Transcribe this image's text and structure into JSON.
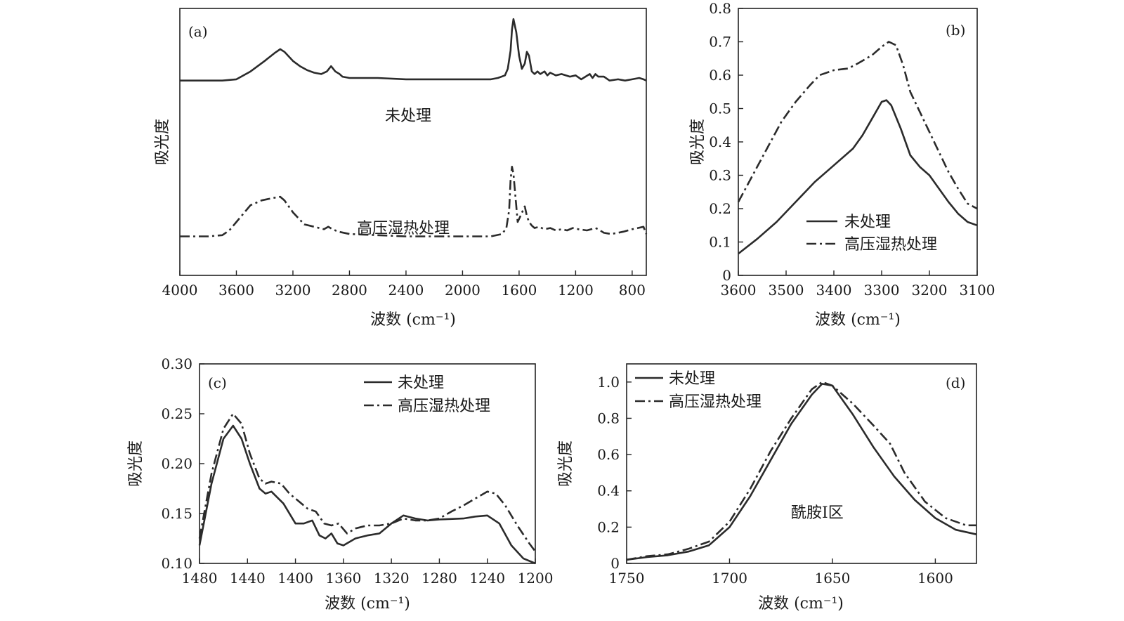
{
  "chart_data": [
    {
      "id": "a",
      "type": "line",
      "panel_label": "(a)",
      "xlabel": "波数 (cm⁻¹)",
      "ylabel": "吸光度",
      "xlim": [
        4000,
        700
      ],
      "ylim": [
        0,
        1
      ],
      "xticks": [
        4000,
        3600,
        3200,
        2800,
        2400,
        2000,
        1600,
        1200,
        800
      ],
      "yticks": [],
      "annotations": [
        "未处理",
        "高压湿热处理"
      ],
      "series": [
        {
          "name": "未处理",
          "style": "solid",
          "x": [
            4000,
            3800,
            3700,
            3600,
            3500,
            3400,
            3330,
            3290,
            3260,
            3200,
            3150,
            3100,
            3050,
            3000,
            2960,
            2930,
            2900,
            2870,
            2850,
            2800,
            2600,
            2400,
            2200,
            2000,
            1900,
            1800,
            1750,
            1700,
            1680,
            1660,
            1650,
            1640,
            1620,
            1600,
            1580,
            1560,
            1545,
            1530,
            1510,
            1490,
            1470,
            1450,
            1420,
            1400,
            1380,
            1340,
            1300,
            1240,
            1200,
            1160,
            1100,
            1080,
            1060,
            1040,
            1000,
            960,
            900,
            850,
            800,
            750,
            720,
            700
          ],
          "y": [
            0.53,
            0.53,
            0.53,
            0.54,
            0.6,
            0.68,
            0.74,
            0.77,
            0.75,
            0.68,
            0.64,
            0.61,
            0.59,
            0.58,
            0.6,
            0.64,
            0.6,
            0.58,
            0.56,
            0.55,
            0.55,
            0.54,
            0.54,
            0.54,
            0.54,
            0.54,
            0.55,
            0.57,
            0.62,
            0.76,
            0.92,
            1.0,
            0.9,
            0.72,
            0.62,
            0.66,
            0.75,
            0.72,
            0.6,
            0.58,
            0.6,
            0.58,
            0.6,
            0.57,
            0.59,
            0.57,
            0.58,
            0.56,
            0.57,
            0.54,
            0.58,
            0.55,
            0.58,
            0.56,
            0.56,
            0.53,
            0.54,
            0.53,
            0.54,
            0.55,
            0.54,
            0.53
          ]
        },
        {
          "name": "高压湿热处理",
          "style": "dashdot",
          "x": [
            4000,
            3800,
            3700,
            3650,
            3600,
            3500,
            3420,
            3340,
            3290,
            3260,
            3200,
            3120,
            3050,
            2980,
            2950,
            2920,
            2880,
            2800,
            2600,
            2400,
            2200,
            2000,
            1900,
            1800,
            1720,
            1690,
            1670,
            1660,
            1650,
            1640,
            1625,
            1610,
            1590,
            1560,
            1545,
            1530,
            1510,
            1490,
            1460,
            1420,
            1380,
            1340,
            1300,
            1260,
            1220,
            1180,
            1120,
            1060,
            1040,
            1000,
            950,
            900,
            860,
            800,
            760,
            720,
            700
          ],
          "y": [
            0.08,
            0.08,
            0.09,
            0.13,
            0.2,
            0.34,
            0.38,
            0.4,
            0.41,
            0.38,
            0.28,
            0.18,
            0.16,
            0.14,
            0.16,
            0.14,
            0.12,
            0.1,
            0.09,
            0.08,
            0.08,
            0.08,
            0.08,
            0.08,
            0.1,
            0.15,
            0.3,
            0.55,
            0.66,
            0.6,
            0.4,
            0.2,
            0.25,
            0.33,
            0.25,
            0.2,
            0.17,
            0.15,
            0.16,
            0.14,
            0.15,
            0.13,
            0.14,
            0.13,
            0.15,
            0.14,
            0.13,
            0.15,
            0.14,
            0.11,
            0.1,
            0.11,
            0.12,
            0.14,
            0.15,
            0.16,
            0.1
          ]
        }
      ]
    },
    {
      "id": "b",
      "type": "line",
      "panel_label": "(b)",
      "xlabel": "波数 (cm⁻¹)",
      "ylabel": "吸光度",
      "xlim": [
        3600,
        3100
      ],
      "ylim": [
        0,
        0.8
      ],
      "xticks": [
        3600,
        3500,
        3400,
        3300,
        3200,
        3100
      ],
      "yticks": [
        0,
        0.1,
        0.2,
        0.3,
        0.4,
        0.5,
        0.6,
        0.7,
        0.8
      ],
      "legend": {
        "position": "lower-right",
        "entries": [
          "未处理",
          "高压湿热处理"
        ]
      },
      "series": [
        {
          "name": "未处理",
          "style": "solid",
          "x": [
            3600,
            3560,
            3520,
            3480,
            3440,
            3400,
            3360,
            3340,
            3320,
            3300,
            3290,
            3280,
            3260,
            3240,
            3220,
            3200,
            3180,
            3160,
            3140,
            3120,
            3100
          ],
          "y": [
            0.065,
            0.11,
            0.16,
            0.22,
            0.28,
            0.33,
            0.38,
            0.42,
            0.47,
            0.52,
            0.525,
            0.51,
            0.44,
            0.36,
            0.325,
            0.3,
            0.26,
            0.22,
            0.185,
            0.16,
            0.15
          ]
        },
        {
          "name": "高压湿热处理",
          "style": "dashdot",
          "x": [
            3600,
            3570,
            3540,
            3510,
            3480,
            3450,
            3430,
            3400,
            3370,
            3350,
            3320,
            3300,
            3285,
            3270,
            3255,
            3240,
            3220,
            3200,
            3180,
            3160,
            3140,
            3120,
            3100
          ],
          "y": [
            0.22,
            0.3,
            0.38,
            0.46,
            0.52,
            0.57,
            0.6,
            0.615,
            0.62,
            0.635,
            0.66,
            0.685,
            0.7,
            0.69,
            0.63,
            0.55,
            0.49,
            0.43,
            0.37,
            0.31,
            0.26,
            0.215,
            0.2
          ]
        }
      ]
    },
    {
      "id": "c",
      "type": "line",
      "panel_label": "(c)",
      "xlabel": "波数 (cm⁻¹)",
      "ylabel": "吸光度",
      "xlim": [
        1480,
        1200
      ],
      "ylim": [
        0.1,
        0.3
      ],
      "xticks": [
        1480,
        1440,
        1400,
        1360,
        1320,
        1280,
        1240,
        1200
      ],
      "yticks": [
        0.1,
        0.15,
        0.2,
        0.25,
        0.3
      ],
      "legend": {
        "position": "top-right",
        "entries": [
          "未处理",
          "高压湿热处理"
        ]
      },
      "series": [
        {
          "name": "未处理",
          "style": "solid",
          "x": [
            1480,
            1470,
            1460,
            1452,
            1445,
            1438,
            1430,
            1425,
            1420,
            1410,
            1400,
            1393,
            1386,
            1380,
            1375,
            1370,
            1365,
            1360,
            1350,
            1340,
            1330,
            1320,
            1310,
            1300,
            1290,
            1280,
            1260,
            1250,
            1240,
            1230,
            1220,
            1210,
            1200
          ],
          "y": [
            0.118,
            0.18,
            0.225,
            0.238,
            0.225,
            0.2,
            0.175,
            0.17,
            0.172,
            0.16,
            0.14,
            0.14,
            0.143,
            0.128,
            0.125,
            0.13,
            0.12,
            0.118,
            0.125,
            0.128,
            0.13,
            0.14,
            0.148,
            0.145,
            0.143,
            0.144,
            0.145,
            0.147,
            0.148,
            0.14,
            0.118,
            0.105,
            0.1
          ]
        },
        {
          "name": "高压湿热处理",
          "style": "dashdot",
          "x": [
            1480,
            1470,
            1460,
            1452,
            1445,
            1438,
            1430,
            1425,
            1420,
            1412,
            1405,
            1400,
            1390,
            1383,
            1376,
            1370,
            1364,
            1357,
            1350,
            1340,
            1330,
            1320,
            1310,
            1300,
            1290,
            1280,
            1270,
            1260,
            1250,
            1240,
            1233,
            1225,
            1215,
            1205,
            1200
          ],
          "y": [
            0.125,
            0.19,
            0.235,
            0.25,
            0.24,
            0.21,
            0.185,
            0.18,
            0.182,
            0.18,
            0.17,
            0.165,
            0.155,
            0.152,
            0.14,
            0.138,
            0.14,
            0.13,
            0.135,
            0.138,
            0.138,
            0.14,
            0.145,
            0.143,
            0.143,
            0.145,
            0.152,
            0.158,
            0.165,
            0.172,
            0.17,
            0.158,
            0.138,
            0.12,
            0.112
          ]
        }
      ]
    },
    {
      "id": "d",
      "type": "line",
      "panel_label": "(d)",
      "xlabel": "波数 (cm⁻¹)",
      "ylabel": "吸光度",
      "xlim": [
        1750,
        1580
      ],
      "ylim": [
        0,
        1.1
      ],
      "xticks": [
        1750,
        1700,
        1650,
        1600
      ],
      "yticks": [
        0,
        0.2,
        0.4,
        0.6,
        0.8,
        1.0
      ],
      "legend": {
        "position": "top-left",
        "entries": [
          "未处理",
          "高压湿热处理"
        ]
      },
      "annotations": [
        "酰胺Ⅰ区"
      ],
      "series": [
        {
          "name": "未处理",
          "style": "solid",
          "x": [
            1750,
            1740,
            1730,
            1720,
            1710,
            1700,
            1690,
            1680,
            1670,
            1660,
            1655,
            1650,
            1640,
            1630,
            1620,
            1610,
            1600,
            1590,
            1580
          ],
          "y": [
            0.02,
            0.035,
            0.045,
            0.065,
            0.1,
            0.2,
            0.37,
            0.57,
            0.77,
            0.93,
            0.99,
            0.98,
            0.82,
            0.64,
            0.48,
            0.35,
            0.25,
            0.185,
            0.16
          ]
        },
        {
          "name": "高压湿热处理",
          "style": "dashdot",
          "x": [
            1750,
            1740,
            1730,
            1720,
            1710,
            1700,
            1690,
            1680,
            1670,
            1660,
            1655,
            1650,
            1640,
            1630,
            1622,
            1615,
            1605,
            1595,
            1585,
            1580
          ],
          "y": [
            0.02,
            0.04,
            0.05,
            0.08,
            0.12,
            0.23,
            0.41,
            0.62,
            0.8,
            0.96,
            1.0,
            0.98,
            0.88,
            0.76,
            0.66,
            0.5,
            0.34,
            0.25,
            0.21,
            0.21
          ]
        }
      ]
    }
  ]
}
